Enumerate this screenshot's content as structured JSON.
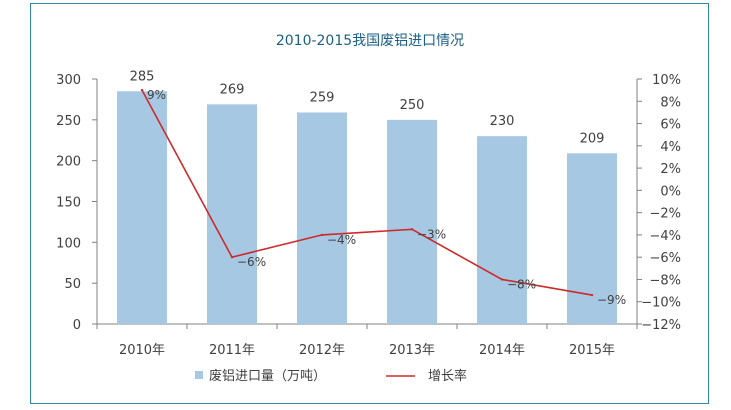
{
  "chart_data": {
    "type": "bar+line",
    "title": "2010-2015我国废铝进口情况",
    "categories": [
      "2010年",
      "2011年",
      "2012年",
      "2013年",
      "2014年",
      "2015年"
    ],
    "series": [
      {
        "name": "废铝进口量（万吨）",
        "type": "bar",
        "axis": "left",
        "values": [
          285,
          269,
          259,
          250,
          230,
          209
        ],
        "labels": [
          "285",
          "269",
          "259",
          "250",
          "230",
          "209"
        ],
        "color": "#a7c8e2"
      },
      {
        "name": "增长率",
        "type": "line",
        "axis": "right",
        "values": [
          9,
          -6,
          -4,
          -3.5,
          -8,
          -9.4
        ],
        "labels": [
          "9%",
          "−6%",
          "−4%",
          "−3%",
          "−8%",
          "−9%"
        ],
        "color": "#cc2b2b"
      }
    ],
    "y_left": {
      "min": 0,
      "max": 300,
      "ticks": [
        0,
        50,
        100,
        150,
        200,
        250,
        300
      ],
      "tick_labels": [
        "0",
        "50",
        "100",
        "150",
        "200",
        "250",
        "300"
      ]
    },
    "y_right": {
      "min": -12,
      "max": 10,
      "ticks": [
        -12,
        -10,
        -8,
        -6,
        -4,
        -2,
        0,
        2,
        4,
        6,
        8,
        10
      ],
      "tick_labels": [
        "−12%",
        "−10%",
        "−8%",
        "−6%",
        "−4%",
        "−2%",
        "0%",
        "2%",
        "4%",
        "6%",
        "8%",
        "10%"
      ]
    },
    "grid": false,
    "legend_position": "bottom"
  },
  "colors": {
    "frame": "#2f8aa4",
    "title": "#1a5f86",
    "axis": "#808080"
  }
}
